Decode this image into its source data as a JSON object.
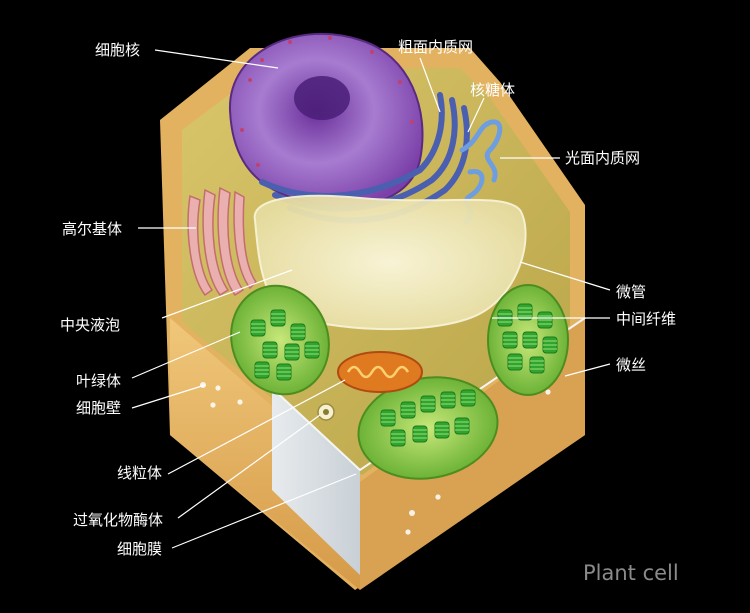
{
  "labels": {
    "nucleus": "细胞核",
    "rough_er": "粗面内质网",
    "ribosome": "核糖体",
    "smooth_er": "光面内质网",
    "golgi": "高尔基体",
    "vacuole": "中央液泡",
    "microtubule": "微管",
    "intermediate_filament": "中间纤维",
    "chloroplast": "叶绿体",
    "microfilament": "微丝",
    "cell_wall": "细胞壁",
    "mitochondrion": "线粒体",
    "peroxisome": "过氧化物酶体",
    "cell_membrane": "细胞膜"
  },
  "watermark": "Plant cell",
  "colors": {
    "background": "#000000",
    "cell_wall": "#e8b96a",
    "cytoplasm": "#cdb85a",
    "nucleus": "#8a52b0",
    "rough_er": "#4a5fb0",
    "smooth_er": "#6f9ee0",
    "vacuole": "#f3eec5",
    "golgi": "#e8a8a8",
    "chloroplast": "#7fc43a",
    "thylakoid": "#2fa52f",
    "mitochondrion": "#e07a20"
  }
}
